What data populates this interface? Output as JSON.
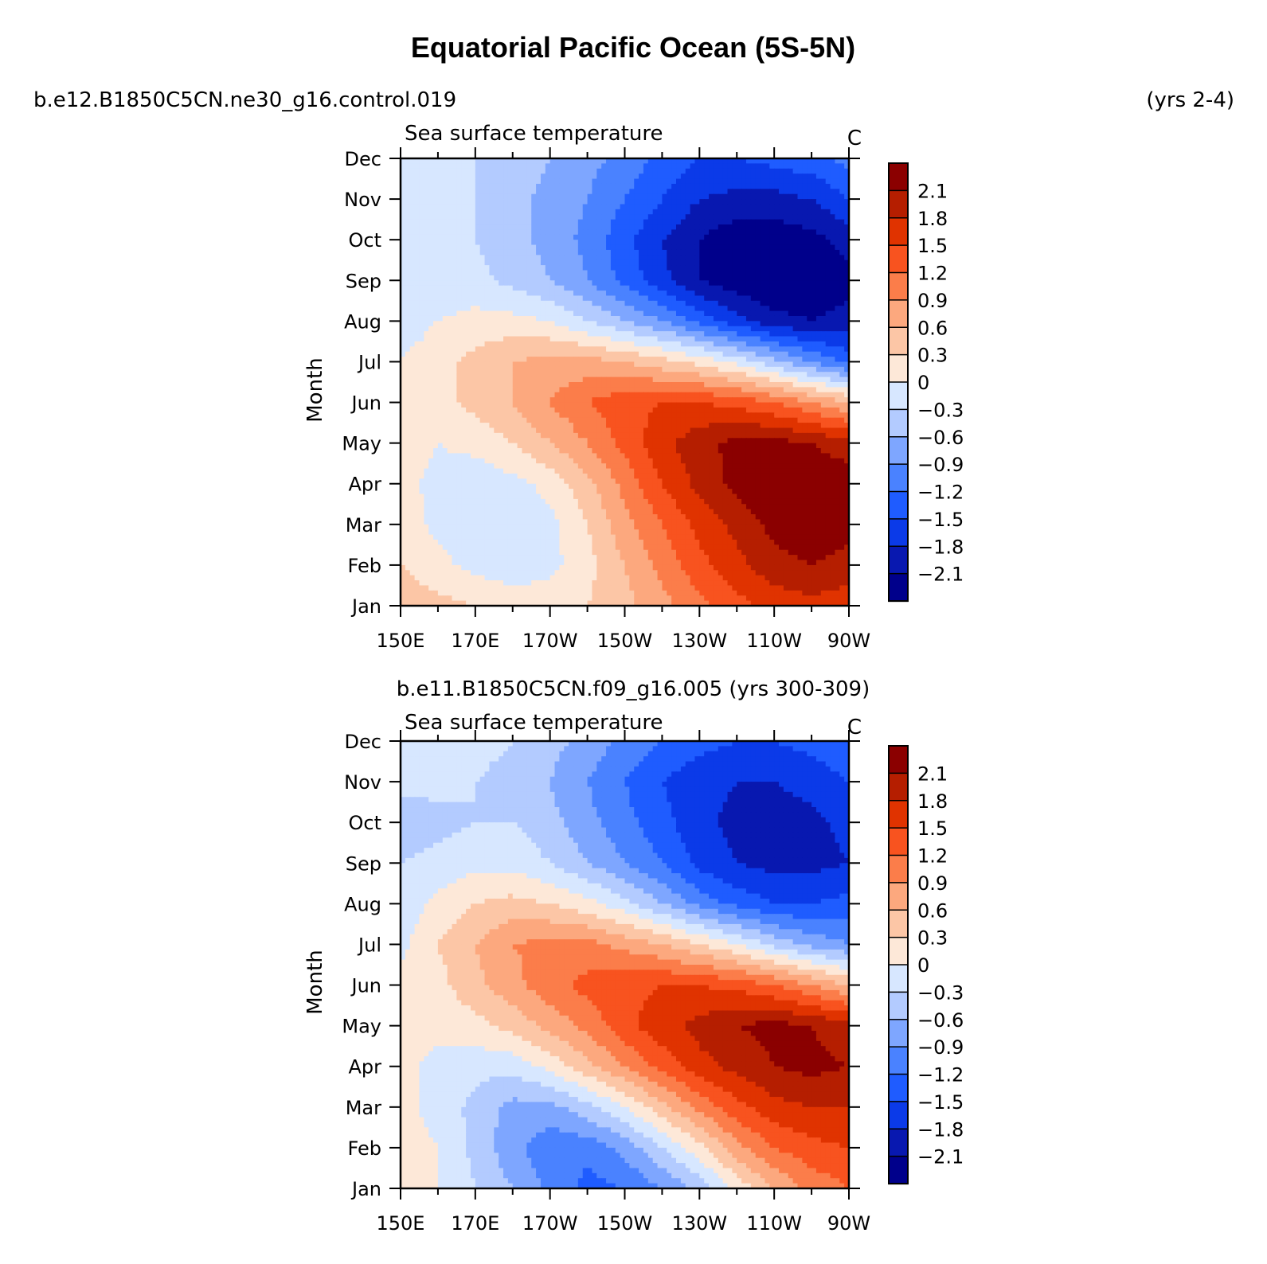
{
  "title": "Equatorial Pacific Ocean (5S-5N)",
  "colors": {
    "levels": [
      "#00008b",
      "#0818b0",
      "#0b3ae8",
      "#1f5cff",
      "#4a82ff",
      "#7ea6ff",
      "#b3cbff",
      "#d7e7ff",
      "#fde8d8",
      "#fcc6a6",
      "#fca87e",
      "#fb7d4a",
      "#f8531f",
      "#e03300",
      "#b51e00",
      "#8b0000"
    ]
  },
  "chart_data": [
    {
      "type": "heatmap",
      "case_label": "b.e12.B1850C5CN.ne30_g16.control.019",
      "years_label": "(yrs 2-4)",
      "subtitle": "Sea surface temperature",
      "units": "C",
      "ylabel": "Month",
      "xlabel": "",
      "x_ticks": [
        "150E",
        "170E",
        "170W",
        "150W",
        "130W",
        "110W",
        "90W"
      ],
      "y_ticks": [
        "Jan",
        "Feb",
        "Mar",
        "Apr",
        "May",
        "Jun",
        "Jul",
        "Aug",
        "Sep",
        "Oct",
        "Nov",
        "Dec"
      ],
      "x_range": [
        150,
        270
      ],
      "y_range": [
        1,
        12
      ],
      "contour_levels": [
        -2.1,
        -1.8,
        -1.5,
        -1.2,
        -0.9,
        -0.6,
        -0.3,
        0,
        0.3,
        0.6,
        0.9,
        1.2,
        1.5,
        1.8,
        2.1
      ],
      "colorbar_labels": [
        "2.1",
        "1.8",
        "1.5",
        "1.2",
        "0.9",
        "0.6",
        "0.3",
        "0",
        "−0.3",
        "−0.6",
        "−0.9",
        "−1.2",
        "−1.5",
        "−1.8",
        "−2.1"
      ],
      "grid_lon": [
        150,
        160,
        170,
        180,
        190,
        200,
        210,
        220,
        230,
        240,
        250,
        260,
        270
      ],
      "values": [
        [
          0.5,
          0.4,
          0.3,
          0.2,
          0.2,
          0.3,
          0.5,
          0.8,
          1.1,
          1.4,
          1.6,
          1.7,
          1.6
        ],
        [
          0.3,
          0.1,
          -0.1,
          -0.2,
          -0.1,
          0.2,
          0.6,
          1.0,
          1.4,
          1.7,
          2.0,
          2.1,
          2.0
        ],
        [
          0.2,
          -0.1,
          -0.3,
          -0.3,
          -0.1,
          0.3,
          0.8,
          1.2,
          1.6,
          1.9,
          2.2,
          2.3,
          2.2
        ],
        [
          0.1,
          -0.1,
          -0.2,
          -0.1,
          0.1,
          0.5,
          1.0,
          1.5,
          1.9,
          2.2,
          2.4,
          2.4,
          2.3
        ],
        [
          0.2,
          0.0,
          0.1,
          0.3,
          0.6,
          0.9,
          1.3,
          1.7,
          2.0,
          2.2,
          2.2,
          2.1,
          1.9
        ],
        [
          0.3,
          0.2,
          0.4,
          0.6,
          0.9,
          1.2,
          1.4,
          1.5,
          1.5,
          1.4,
          1.2,
          0.9,
          0.6
        ],
        [
          0.0,
          0.2,
          0.4,
          0.6,
          0.7,
          0.7,
          0.6,
          0.4,
          0.2,
          -0.1,
          -0.5,
          -0.9,
          -1.3
        ],
        [
          -0.2,
          0.0,
          0.1,
          0.1,
          0.0,
          -0.3,
          -0.6,
          -0.9,
          -1.3,
          -1.7,
          -2.0,
          -2.1,
          -2.0
        ],
        [
          -0.3,
          -0.2,
          -0.2,
          -0.4,
          -0.6,
          -0.9,
          -1.3,
          -1.7,
          -2.1,
          -2.3,
          -2.4,
          -2.3,
          -2.2
        ],
        [
          -0.3,
          -0.2,
          -0.3,
          -0.5,
          -0.7,
          -1.0,
          -1.4,
          -1.8,
          -2.1,
          -2.3,
          -2.3,
          -2.2,
          -2.0
        ],
        [
          -0.2,
          -0.1,
          -0.3,
          -0.5,
          -0.7,
          -0.9,
          -1.2,
          -1.5,
          -1.8,
          -1.9,
          -1.9,
          -1.8,
          -1.5
        ],
        [
          -0.1,
          -0.1,
          -0.3,
          -0.4,
          -0.6,
          -0.8,
          -1.0,
          -1.3,
          -1.5,
          -1.5,
          -1.4,
          -1.3,
          -1.1
        ]
      ]
    },
    {
      "type": "heatmap",
      "case_label": "b.e11.B1850C5CN.f09_g16.005 (yrs 300-309)",
      "subtitle": "Sea surface temperature",
      "units": "C",
      "ylabel": "Month",
      "xlabel": "",
      "x_ticks": [
        "150E",
        "170E",
        "170W",
        "150W",
        "130W",
        "110W",
        "90W"
      ],
      "y_ticks": [
        "Jan",
        "Feb",
        "Mar",
        "Apr",
        "May",
        "Jun",
        "Jul",
        "Aug",
        "Sep",
        "Oct",
        "Nov",
        "Dec"
      ],
      "x_range": [
        150,
        270
      ],
      "y_range": [
        1,
        12
      ],
      "contour_levels": [
        -2.1,
        -1.8,
        -1.5,
        -1.2,
        -0.9,
        -0.6,
        -0.3,
        0,
        0.3,
        0.6,
        0.9,
        1.2,
        1.5,
        1.8,
        2.1
      ],
      "colorbar_labels": [
        "2.1",
        "1.8",
        "1.5",
        "1.2",
        "0.9",
        "0.6",
        "0.3",
        "0",
        "−0.3",
        "−0.6",
        "−0.9",
        "−1.2",
        "−1.5",
        "−1.8",
        "−2.1"
      ],
      "grid_lon": [
        150,
        160,
        170,
        180,
        190,
        200,
        210,
        220,
        230,
        240,
        250,
        260,
        270
      ],
      "values": [
        [
          0.1,
          0.0,
          -0.3,
          -0.6,
          -1.0,
          -1.3,
          -1.2,
          -0.9,
          -0.5,
          0.1,
          0.6,
          1.0,
          1.2
        ],
        [
          0.1,
          0.0,
          -0.4,
          -0.8,
          -1.1,
          -1.1,
          -0.8,
          -0.3,
          0.2,
          0.8,
          1.2,
          1.4,
          1.5
        ],
        [
          0.1,
          -0.1,
          -0.4,
          -0.7,
          -0.7,
          -0.4,
          0.0,
          0.5,
          1.0,
          1.4,
          1.7,
          1.8,
          1.8
        ],
        [
          0.1,
          -0.1,
          -0.2,
          -0.2,
          0.1,
          0.5,
          0.9,
          1.3,
          1.7,
          1.9,
          2.1,
          2.2,
          2.1
        ],
        [
          0.1,
          0.1,
          0.2,
          0.4,
          0.7,
          1.0,
          1.4,
          1.7,
          1.9,
          2.1,
          2.2,
          2.1,
          1.9
        ],
        [
          0.1,
          0.2,
          0.5,
          0.8,
          1.1,
          1.3,
          1.4,
          1.5,
          1.5,
          1.4,
          1.2,
          0.9,
          0.6
        ],
        [
          -0.1,
          0.3,
          0.6,
          0.9,
          1.0,
          1.0,
          0.8,
          0.6,
          0.3,
          0.0,
          -0.4,
          -0.7,
          -0.9
        ],
        [
          -0.2,
          0.1,
          0.3,
          0.4,
          0.3,
          0.1,
          -0.2,
          -0.6,
          -1.0,
          -1.3,
          -1.5,
          -1.5,
          -1.4
        ],
        [
          -0.3,
          -0.2,
          -0.1,
          -0.1,
          -0.3,
          -0.6,
          -0.9,
          -1.2,
          -1.6,
          -1.8,
          -1.9,
          -1.9,
          -1.8
        ],
        [
          -0.5,
          -0.4,
          -0.3,
          -0.3,
          -0.5,
          -0.8,
          -1.1,
          -1.4,
          -1.7,
          -1.9,
          -1.9,
          -1.9,
          -1.7
        ],
        [
          -0.2,
          -0.2,
          -0.3,
          -0.4,
          -0.6,
          -0.9,
          -1.2,
          -1.5,
          -1.7,
          -1.8,
          -1.8,
          -1.7,
          -1.5
        ],
        [
          0.0,
          -0.1,
          -0.2,
          -0.3,
          -0.5,
          -0.7,
          -1.0,
          -1.2,
          -1.4,
          -1.5,
          -1.5,
          -1.4,
          -1.2
        ]
      ]
    }
  ]
}
